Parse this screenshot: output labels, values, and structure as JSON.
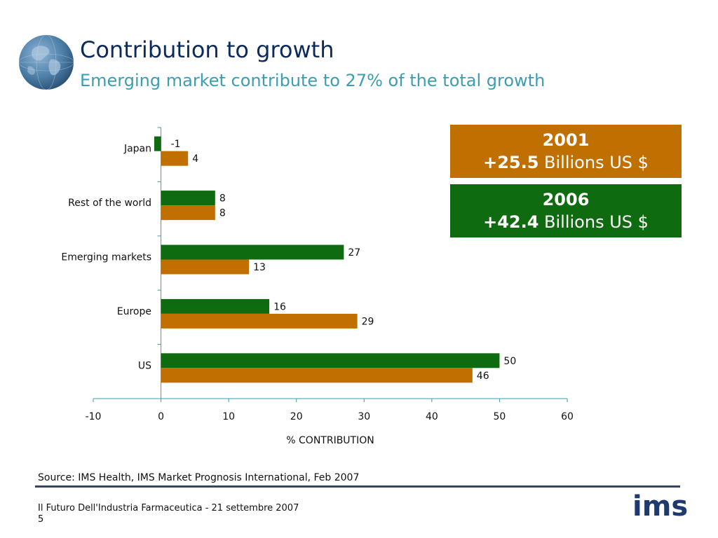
{
  "slide": {
    "title": "Contribution to growth",
    "subtitle": "Emerging market contribute to 27% of the total growth",
    "source": "Source: IMS Health, IMS Market Prognosis International, Feb 2007",
    "footer_line1": "Il Futuro Dell'Industria Farmaceutica - 21 settembre 2007",
    "footer_line2": "5",
    "logo_text": "ims",
    "globe_icon": "globe-icon"
  },
  "legend": [
    {
      "year": "2001",
      "amount": "+25.5",
      "unit": "Billions US $",
      "color": "#c07000"
    },
    {
      "year": "2006",
      "amount": "+42.4",
      "unit": "Billions US $",
      "color": "#0f6b0f"
    }
  ],
  "chart_data": {
    "type": "bar",
    "orientation": "horizontal",
    "categories": [
      "Japan",
      "Rest of the world",
      "Emerging markets",
      "Europe",
      "US"
    ],
    "series": [
      {
        "name": "2006",
        "color": "#0f6b0f",
        "values": [
          -1,
          8,
          27,
          16,
          50
        ]
      },
      {
        "name": "2001",
        "color": "#c07000",
        "values": [
          4,
          8,
          13,
          29,
          46
        ]
      }
    ],
    "xlabel": "% CONTRIBUTION",
    "xlim": [
      -10,
      60
    ],
    "xticks": [
      -10,
      0,
      10,
      20,
      30,
      40,
      50,
      60
    ],
    "grid": false,
    "legend_position": "top-right"
  }
}
